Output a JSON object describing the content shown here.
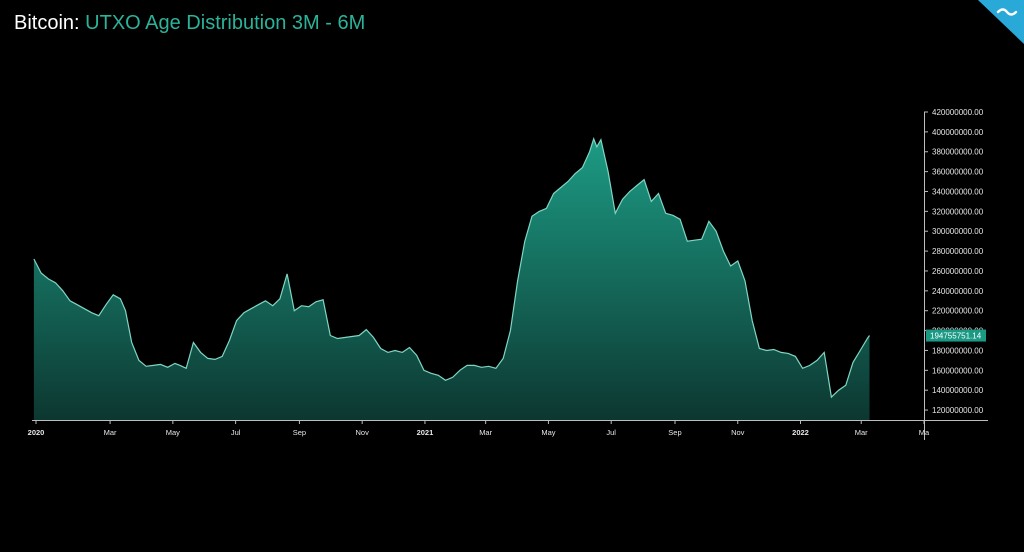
{
  "title": {
    "lead": "Bitcoin:",
    "sub": "UTXO Age Distribution 3M - 6M"
  },
  "colors": {
    "background": "#000000",
    "accent": "#2bb39a",
    "line": "#7fd6c4",
    "badge": "#1a9985",
    "logo": "#29a9d8"
  },
  "logo": {
    "icon": "wave-logo-icon"
  },
  "chart_data": {
    "type": "area",
    "title": "UTXO Age Distribution 3M - 6M",
    "xlabel": "",
    "ylabel": "",
    "ylim": [
      110000000,
      420000000
    ],
    "xlim": [
      "2019-12-20",
      "2022-05-01"
    ],
    "grid": false,
    "last_value_label": "194755751.14",
    "x_ticks": [
      {
        "date": "2019-12-20",
        "label": "2020",
        "bold": true
      },
      {
        "date": "2020-03-01",
        "label": "Mar",
        "bold": false
      },
      {
        "date": "2020-05-01",
        "label": "May",
        "bold": false
      },
      {
        "date": "2020-07-01",
        "label": "Jul",
        "bold": false
      },
      {
        "date": "2020-09-01",
        "label": "Sep",
        "bold": false
      },
      {
        "date": "2020-11-01",
        "label": "Nov",
        "bold": false
      },
      {
        "date": "2021-01-01",
        "label": "2021",
        "bold": true
      },
      {
        "date": "2021-03-01",
        "label": "Mar",
        "bold": false
      },
      {
        "date": "2021-05-01",
        "label": "May",
        "bold": false
      },
      {
        "date": "2021-07-01",
        "label": "Jul",
        "bold": false
      },
      {
        "date": "2021-09-01",
        "label": "Sep",
        "bold": false
      },
      {
        "date": "2021-11-01",
        "label": "Nov",
        "bold": false
      },
      {
        "date": "2022-01-01",
        "label": "2022",
        "bold": true
      },
      {
        "date": "2022-03-01",
        "label": "Mar",
        "bold": false
      },
      {
        "date": "2022-05-01",
        "label": "Ma",
        "bold": false
      }
    ],
    "y_ticks": [
      {
        "value": 120000000,
        "label": "120000000.00"
      },
      {
        "value": 140000000,
        "label": "140000000.00"
      },
      {
        "value": 160000000,
        "label": "160000000.00"
      },
      {
        "value": 180000000,
        "label": "180000000.00"
      },
      {
        "value": 200000000,
        "label": "200000000.00"
      },
      {
        "value": 220000000,
        "label": "220000000.00"
      },
      {
        "value": 240000000,
        "label": "240000000.00"
      },
      {
        "value": 260000000,
        "label": "260000000.00"
      },
      {
        "value": 280000000,
        "label": "280000000.00"
      },
      {
        "value": 300000000,
        "label": "300000000.00"
      },
      {
        "value": 320000000,
        "label": "320000000.00"
      },
      {
        "value": 340000000,
        "label": "340000000.00"
      },
      {
        "value": 360000000,
        "label": "360000000.00"
      },
      {
        "value": 380000000,
        "label": "380000000.00"
      },
      {
        "value": 400000000,
        "label": "400000000.00"
      },
      {
        "value": 420000000,
        "label": "420000000.00"
      }
    ],
    "series": [
      {
        "x": [
          "2019-12-18",
          "2019-12-25",
          "2020-01-01",
          "2020-01-08",
          "2020-01-15",
          "2020-01-22",
          "2020-01-29",
          "2020-02-05",
          "2020-02-12",
          "2020-02-19",
          "2020-02-26",
          "2020-03-04",
          "2020-03-11",
          "2020-03-16",
          "2020-03-22",
          "2020-03-29",
          "2020-04-05",
          "2020-04-12",
          "2020-04-19",
          "2020-04-26",
          "2020-05-03",
          "2020-05-08",
          "2020-05-14",
          "2020-05-21",
          "2020-05-28",
          "2020-06-04",
          "2020-06-11",
          "2020-06-18",
          "2020-06-25",
          "2020-07-02",
          "2020-07-09",
          "2020-07-16",
          "2020-07-23",
          "2020-07-30",
          "2020-08-06",
          "2020-08-13",
          "2020-08-20",
          "2020-08-27",
          "2020-09-03",
          "2020-09-10",
          "2020-09-17",
          "2020-09-24",
          "2020-10-01",
          "2020-10-08",
          "2020-10-15",
          "2020-10-22",
          "2020-10-29",
          "2020-11-05",
          "2020-11-12",
          "2020-11-19",
          "2020-11-26",
          "2020-12-03",
          "2020-12-10",
          "2020-12-17",
          "2020-12-24",
          "2020-12-31",
          "2021-01-07",
          "2021-01-14",
          "2021-01-21",
          "2021-01-28",
          "2021-02-04",
          "2021-02-11",
          "2021-02-18",
          "2021-02-25",
          "2021-03-04",
          "2021-03-11",
          "2021-03-18",
          "2021-03-25",
          "2021-04-01",
          "2021-04-08",
          "2021-04-15",
          "2021-04-22",
          "2021-04-29",
          "2021-05-06",
          "2021-05-13",
          "2021-05-20",
          "2021-05-27",
          "2021-06-03",
          "2021-06-10",
          "2021-06-14",
          "2021-06-17",
          "2021-06-21",
          "2021-06-28",
          "2021-07-05",
          "2021-07-12",
          "2021-07-19",
          "2021-07-26",
          "2021-08-02",
          "2021-08-09",
          "2021-08-16",
          "2021-08-23",
          "2021-08-30",
          "2021-09-06",
          "2021-09-13",
          "2021-09-20",
          "2021-09-27",
          "2021-10-04",
          "2021-10-11",
          "2021-10-18",
          "2021-10-25",
          "2021-11-01",
          "2021-11-08",
          "2021-11-15",
          "2021-11-22",
          "2021-11-29",
          "2021-12-06",
          "2021-12-13",
          "2021-12-20",
          "2021-12-27",
          "2022-01-03",
          "2022-01-10",
          "2022-01-17",
          "2022-01-24",
          "2022-01-31",
          "2022-02-07",
          "2022-02-14",
          "2022-02-21",
          "2022-02-28",
          "2022-03-07",
          "2022-03-09"
        ],
        "y": [
          272000000,
          258000000,
          252000000,
          248000000,
          240000000,
          230000000,
          226000000,
          222000000,
          218000000,
          215000000,
          226000000,
          236000000,
          232000000,
          220000000,
          188000000,
          170000000,
          164000000,
          165000000,
          166000000,
          163000000,
          167000000,
          165000000,
          162000000,
          188000000,
          178000000,
          172000000,
          171000000,
          174000000,
          190000000,
          210000000,
          218000000,
          222000000,
          226000000,
          230000000,
          225000000,
          232000000,
          257000000,
          220000000,
          225000000,
          224000000,
          229000000,
          231000000,
          195000000,
          192000000,
          193000000,
          194000000,
          195000000,
          201000000,
          193000000,
          182000000,
          178000000,
          180000000,
          178000000,
          183000000,
          175000000,
          160000000,
          157000000,
          155000000,
          150000000,
          153000000,
          160000000,
          165000000,
          165000000,
          163000000,
          164000000,
          162000000,
          172000000,
          200000000,
          250000000,
          290000000,
          315000000,
          320000000,
          323000000,
          338000000,
          344000000,
          350000000,
          358000000,
          364000000,
          380000000,
          393000000,
          385000000,
          392000000,
          360000000,
          318000000,
          332000000,
          340000000,
          346000000,
          352000000,
          330000000,
          338000000,
          318000000,
          316000000,
          312000000,
          290000000,
          291000000,
          292000000,
          310000000,
          300000000,
          280000000,
          265000000,
          270000000,
          250000000,
          210000000,
          182000000,
          180000000,
          181000000,
          178000000,
          177000000,
          174000000,
          162000000,
          165000000,
          170000000,
          178000000,
          133000000,
          140000000,
          145000000,
          168000000,
          180000000,
          192000000,
          195000000
        ]
      }
    ]
  }
}
